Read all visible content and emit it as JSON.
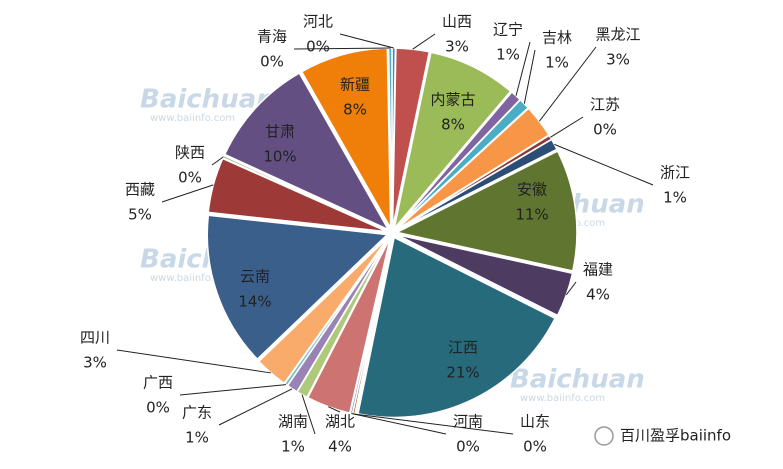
{
  "chart_data": {
    "type": "pie",
    "categories": [
      "河北",
      "山西",
      "内蒙古",
      "辽宁",
      "吉林",
      "黑龙江",
      "江苏",
      "浙江",
      "安徽",
      "福建",
      "江西",
      "山东",
      "河南",
      "湖北",
      "湖南",
      "广东",
      "广西",
      "四川",
      "云南",
      "西藏",
      "陕西",
      "甘肃",
      "新疆",
      "青海"
    ],
    "values": [
      0.3,
      3,
      8,
      1,
      1,
      3,
      0.4,
      1,
      11,
      4,
      21,
      0.2,
      0.2,
      4,
      1,
      1,
      0.3,
      3,
      14,
      5,
      0.2,
      10,
      8,
      0.3
    ],
    "value_labels": [
      "0%",
      "3%",
      "8%",
      "1%",
      "1%",
      "3%",
      "0%",
      "1%",
      "11%",
      "4%",
      "21%",
      "0%",
      "0%",
      "4%",
      "1%",
      "1%",
      "0%",
      "3%",
      "14%",
      "5%",
      "0%",
      "10%",
      "8%",
      "0%"
    ],
    "colors": [
      "#4f81bd",
      "#c0504d",
      "#9bbb59",
      "#8064a2",
      "#4bacc6",
      "#f79646",
      "#8c3836",
      "#2c4d75",
      "#5f7530",
      "#4d3b62",
      "#276a7c",
      "#b65708",
      "#729aca",
      "#cd7371",
      "#afc97a",
      "#9983b5",
      "#6fbdd1",
      "#f9ab6b",
      "#3a5f8b",
      "#9d3a37",
      "#7d9a45",
      "#644f83",
      "#f07f09",
      "#4bacc6"
    ],
    "watermark": "Baichuan",
    "watermark_url": "www.baiinfo.com",
    "source": "百川盈孚baiinfo"
  }
}
